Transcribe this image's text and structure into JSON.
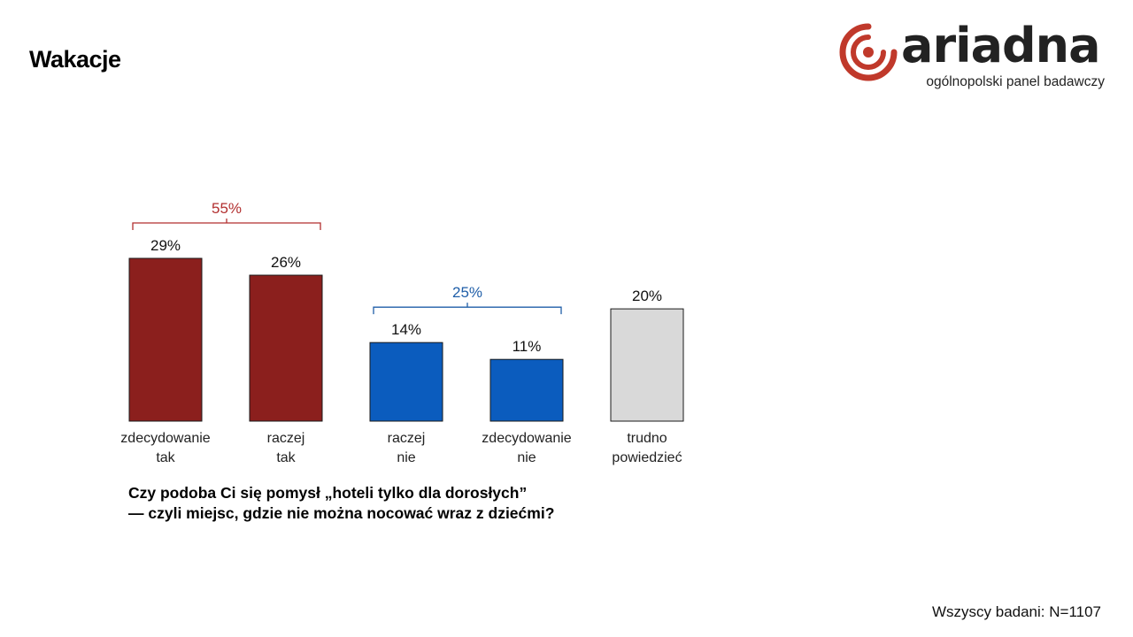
{
  "header": {
    "title": "Wakacje"
  },
  "brand": {
    "name": "ariadna",
    "tagline": "ogólnopolski panel badawczy",
    "colors": {
      "logo_red": "#c0392b",
      "text": "#222222"
    }
  },
  "chart_data": {
    "type": "bar",
    "categories": [
      [
        "zdecydowanie",
        "tak"
      ],
      [
        "raczej",
        "tak"
      ],
      [
        "raczej",
        "nie"
      ],
      [
        "zdecydowanie",
        "nie"
      ],
      [
        "trudno",
        "powiedzieć"
      ]
    ],
    "values": [
      29,
      26,
      14,
      11,
      20
    ],
    "value_labels": [
      "29%",
      "26%",
      "14%",
      "11%",
      "20%"
    ],
    "bar_colors": [
      "#8b1f1d",
      "#8b1f1d",
      "#0b5cbe",
      "#0b5cbe",
      "#d9d9d9"
    ],
    "groups": [
      {
        "label": "55%",
        "from": 0,
        "to": 1,
        "color": "#b22f2f"
      },
      {
        "label": "25%",
        "from": 2,
        "to": 3,
        "color": "#1f5ea8"
      }
    ],
    "ylim": [
      0,
      29
    ],
    "title": "",
    "xlabel": "",
    "ylabel": ""
  },
  "question": {
    "line1": "Czy podoba Ci się pomysł „hoteli tylko dla dorosłych”",
    "line2": "— czyli miejsc, gdzie nie można nocować wraz z dziećmi?"
  },
  "footer": {
    "sample": "Wszyscy badani: N=1107"
  }
}
